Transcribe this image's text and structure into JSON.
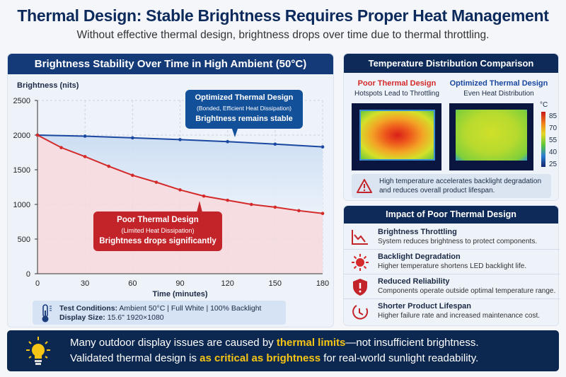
{
  "header": {
    "title": "Thermal Design: Stable Brightness Requires Proper Heat Management",
    "subtitle": "Without effective thermal design, brightness drops over time due to thermal throttling."
  },
  "chart_panel": {
    "title": "Brightness Stability Over Time in High Ambient (50°C)",
    "conditions_label": "Test Conditions:",
    "conditions_value": "Ambient 50°C | Full White | 100% Backlight",
    "size_label": "Display Size:",
    "size_value": "15.6\" 1920×1080",
    "callout_optimized": {
      "title": "Optimized Thermal Design",
      "sub": "(Bonded, Efficient Heat Dissipation)",
      "note": "Brightness remains stable"
    },
    "callout_poor": {
      "title": "Poor Thermal Design",
      "sub": "(Limited Heat Dissipation)",
      "note": "Brightness drops significantly"
    }
  },
  "chart_data": {
    "type": "line",
    "xlabel": "Time (minutes)",
    "ylabel": "Brightness (nits)",
    "xlim": [
      0,
      180
    ],
    "ylim": [
      0,
      2500
    ],
    "xticks": [
      0,
      30,
      60,
      90,
      120,
      150,
      180
    ],
    "yticks": [
      0,
      500,
      1000,
      1500,
      2000,
      2500
    ],
    "grid": true,
    "colors": {
      "optimized": "#1a48a0",
      "poor": "#d42a2a"
    },
    "series": [
      {
        "key": "optimized",
        "x": [
          0,
          30,
          60,
          90,
          120,
          150,
          180
        ],
        "y": [
          2000,
          1985,
          1960,
          1935,
          1905,
          1870,
          1830
        ]
      },
      {
        "key": "poor",
        "x": [
          0,
          15,
          30,
          45,
          60,
          75,
          90,
          105,
          120,
          135,
          150,
          165,
          180
        ],
        "y": [
          2000,
          1820,
          1690,
          1550,
          1420,
          1320,
          1210,
          1120,
          1060,
          1000,
          960,
          910,
          870
        ]
      }
    ]
  },
  "temp_panel": {
    "title": "Temperature Distribution Comparison",
    "poor_title": "Poor Thermal Design",
    "poor_sub": "Hotspots Lead to Throttling",
    "opt_title": "Optimized Thermal Design",
    "opt_sub": "Even Heat Distribution",
    "unit": "°C",
    "scale": [
      "85",
      "70",
      "55",
      "40",
      "25"
    ],
    "warning": "High temperature accelerates backlight degradation and reduces overall product lifespan."
  },
  "impact_panel": {
    "title": "Impact of Poor Thermal Design",
    "items": [
      {
        "title": "Brightness Throttling",
        "desc": "System reduces brightness to protect components.",
        "icon": "chart-down-icon"
      },
      {
        "title": "Backlight Degradation",
        "desc": "Higher temperature shortens LED backlight life.",
        "icon": "sun-icon"
      },
      {
        "title": "Reduced Reliability",
        "desc": "Components operate outside optimal temperature range.",
        "icon": "shield-alert-icon"
      },
      {
        "title": "Shorter Product Lifespan",
        "desc": "Higher failure rate and increased maintenance cost.",
        "icon": "clock-icon"
      }
    ]
  },
  "banner": {
    "l1a": "Many outdoor display issues are caused by ",
    "l1b": "thermal limits",
    "l1c": "—not insufficient brightness.",
    "l2a": "Validated thermal design is ",
    "l2b": "as critical as brightness",
    "l2c": " for real-world sunlight readability."
  }
}
